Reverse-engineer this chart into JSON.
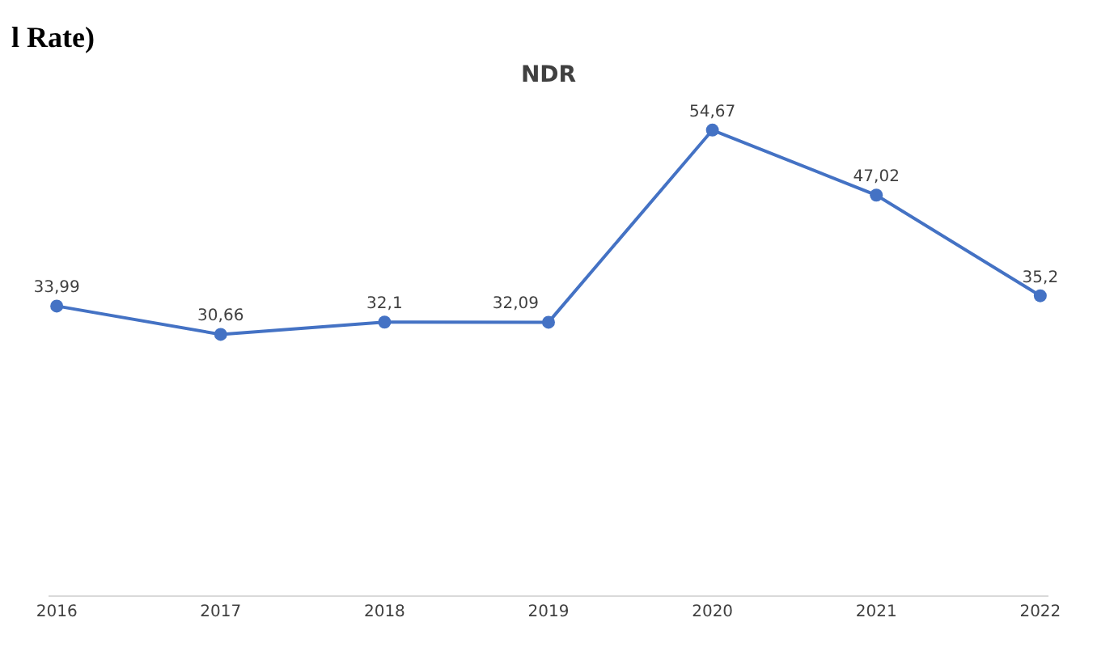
{
  "chart_data": {
    "type": "line",
    "title": "NDR",
    "categories": [
      "2016",
      "2017",
      "2018",
      "2019",
      "2020",
      "2021",
      "2022"
    ],
    "series": [
      {
        "color": "#4472c4",
        "values": [
          33.99,
          30.66,
          32.1,
          32.09,
          54.67,
          47.02,
          35.2
        ],
        "value_labels": [
          "33,99",
          "30,66",
          "32,1",
          "32,09",
          "54,67",
          "47,02",
          "35,2"
        ]
      }
    ],
    "marker": "circle",
    "legend": false,
    "tick_labels": "x",
    "annotations": [
      "l Rate)"
    ]
  }
}
